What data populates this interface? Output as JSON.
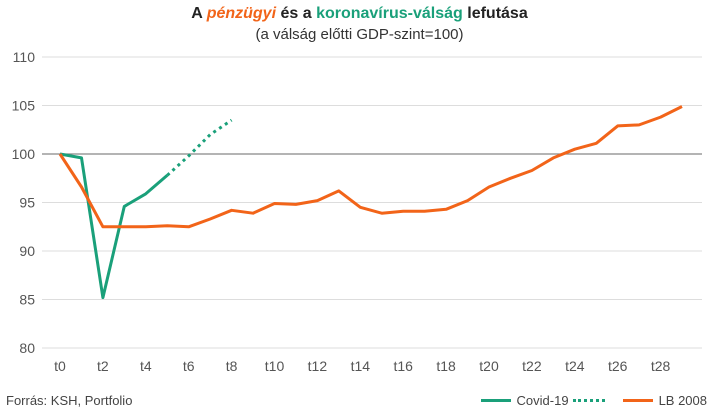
{
  "title": {
    "part1": "A ",
    "word_fin": "pénzügyi",
    "part2": " és a ",
    "word_cov": "koronavírus-válság",
    "part3": " lefutása"
  },
  "subtitle": "(a válság előtti GDP-szint=100)",
  "source": "Forrás: KSH, Portfolio",
  "legend": {
    "covid_label": "Covid-19",
    "lb_label": "LB 2008"
  },
  "colors": {
    "covid": "#1aa07a",
    "lb2008": "#f26419",
    "reference_line": "#888888",
    "grid": "#dddddd"
  },
  "chart_data": {
    "type": "line",
    "title": "A pénzügyi és a koronavírus-válság lefutása",
    "subtitle": "(a válság előtti GDP-szint=100)",
    "ylim": [
      80,
      110
    ],
    "yticks": [
      80,
      85,
      90,
      95,
      100,
      105,
      110
    ],
    "xlim": [
      0,
      29
    ],
    "xtick_labels": [
      "t0",
      "t2",
      "t4",
      "t6",
      "t8",
      "t10",
      "t12",
      "t14",
      "t16",
      "t18",
      "t20",
      "t22",
      "t24",
      "t26",
      "t28"
    ],
    "xtick_positions": [
      0,
      2,
      4,
      6,
      8,
      10,
      12,
      14,
      16,
      18,
      20,
      22,
      24,
      26,
      28
    ],
    "reference_line": 100,
    "series": [
      {
        "name": "Covid-19",
        "color": "#1aa07a",
        "style": "solid",
        "x": [
          0,
          1,
          2,
          3,
          4,
          5
        ],
        "values": [
          100,
          99.6,
          85.2,
          94.6,
          95.9,
          97.8
        ]
      },
      {
        "name": "Covid-19 (forecast)",
        "color": "#1aa07a",
        "style": "dotted",
        "x": [
          5,
          6,
          7,
          8
        ],
        "values": [
          97.8,
          99.8,
          102.0,
          103.5
        ]
      },
      {
        "name": "LB 2008",
        "color": "#f26419",
        "style": "solid",
        "x": [
          0,
          1,
          2,
          3,
          4,
          5,
          6,
          7,
          8,
          9,
          10,
          11,
          12,
          13,
          14,
          15,
          16,
          17,
          18,
          19,
          20,
          21,
          22,
          23,
          24,
          25,
          26,
          27,
          28,
          29
        ],
        "values": [
          100,
          96.6,
          92.5,
          92.5,
          92.5,
          92.6,
          92.5,
          93.3,
          94.2,
          93.9,
          94.9,
          94.8,
          95.2,
          96.2,
          94.5,
          93.9,
          94.1,
          94.1,
          94.3,
          95.2,
          96.6,
          97.5,
          98.3,
          99.6,
          100.5,
          101.1,
          102.9,
          103.0,
          103.8,
          104.9
        ]
      }
    ]
  }
}
